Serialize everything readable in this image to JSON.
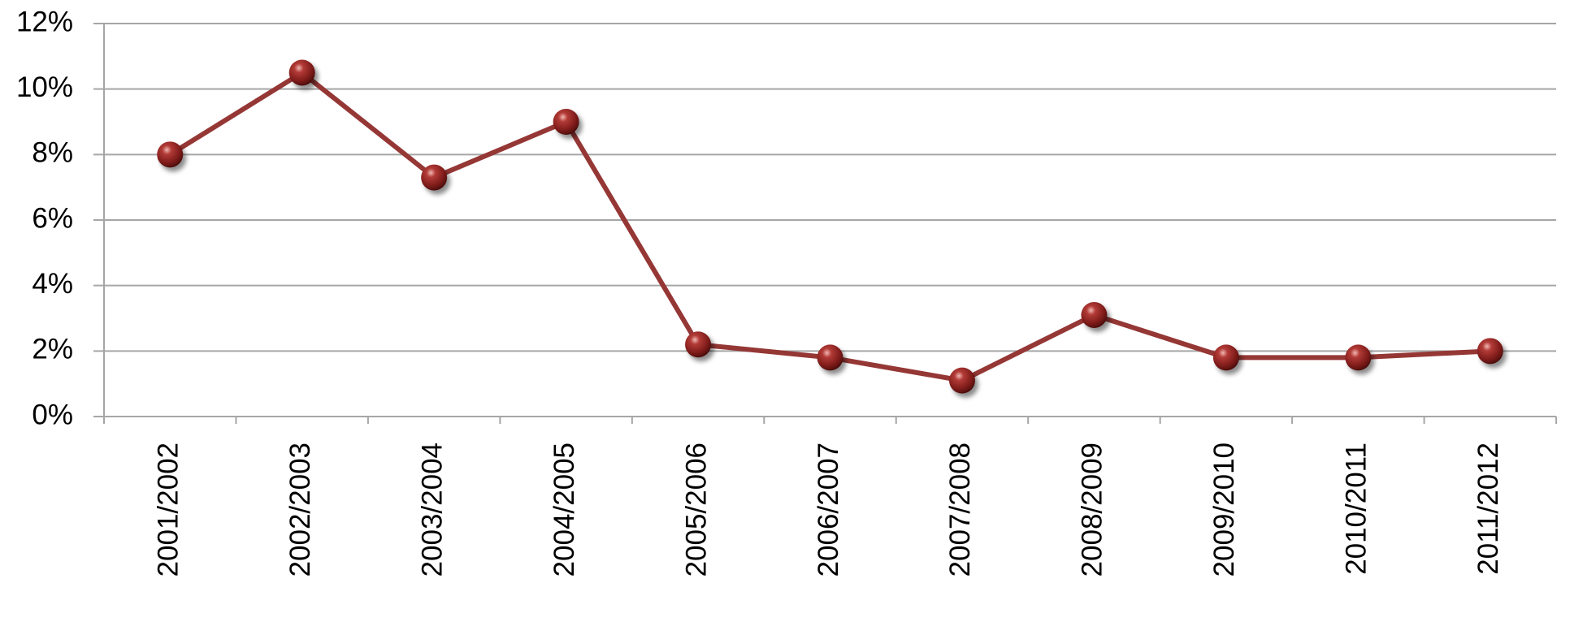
{
  "chart_data": {
    "type": "line",
    "categories": [
      "2001/2002",
      "2002/2003",
      "2003/2004",
      "2004/2005",
      "2005/2006",
      "2006/2007",
      "2007/2008",
      "2008/2009",
      "2009/2010",
      "2010/2011",
      "2011/2012"
    ],
    "series": [
      {
        "color": "#953735",
        "values": [
          8.0,
          10.5,
          7.3,
          9.0,
          2.2,
          1.8,
          1.1,
          3.1,
          1.8,
          1.8,
          2.0
        ]
      }
    ],
    "ylim": [
      0,
      12
    ],
    "yticks": [
      {
        "value": 0,
        "label": "0%"
      },
      {
        "value": 2,
        "label": "2%"
      },
      {
        "value": 4,
        "label": "4%"
      },
      {
        "value": 6,
        "label": "6%"
      },
      {
        "value": 8,
        "label": "8%"
      },
      {
        "value": 10,
        "label": "10%"
      },
      {
        "value": 12,
        "label": "12%"
      }
    ],
    "grid": true
  }
}
